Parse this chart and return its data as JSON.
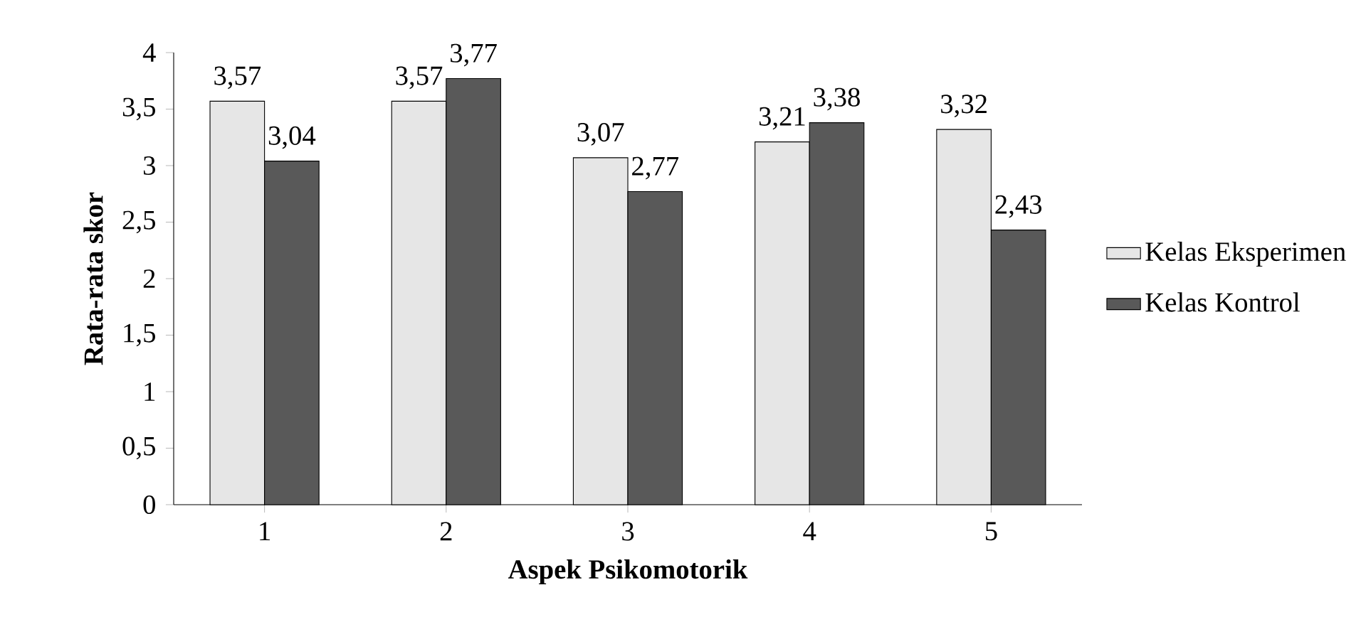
{
  "chart_data": {
    "type": "bar",
    "xlabel": "Aspek Psikomotorik",
    "ylabel": "Rata-rata skor",
    "categories": [
      "1",
      "2",
      "3",
      "4",
      "5"
    ],
    "series": [
      {
        "name": "Kelas Eksperimen",
        "color": "#e6e6e6",
        "values": [
          3.57,
          3.57,
          3.07,
          3.21,
          3.32
        ],
        "value_labels": [
          "3,57",
          "3,57",
          "3,07",
          "3,21",
          "3,32"
        ]
      },
      {
        "name": "Kelas Kontrol",
        "color": "#595959",
        "values": [
          3.04,
          3.77,
          2.77,
          3.38,
          2.43
        ],
        "value_labels": [
          "3,04",
          "3,77",
          "2,77",
          "3,38",
          "2,43"
        ]
      }
    ],
    "ylim": [
      0,
      4
    ],
    "yticks": [
      0,
      {
        "value": 0.5,
        "label": "0,5"
      },
      1,
      {
        "value": 1.5,
        "label": "1,5"
      },
      2,
      {
        "value": 2.5,
        "label": "2,5"
      },
      3,
      {
        "value": 3.5,
        "label": "3,5"
      },
      4
    ],
    "legend": "right",
    "grid": false
  }
}
